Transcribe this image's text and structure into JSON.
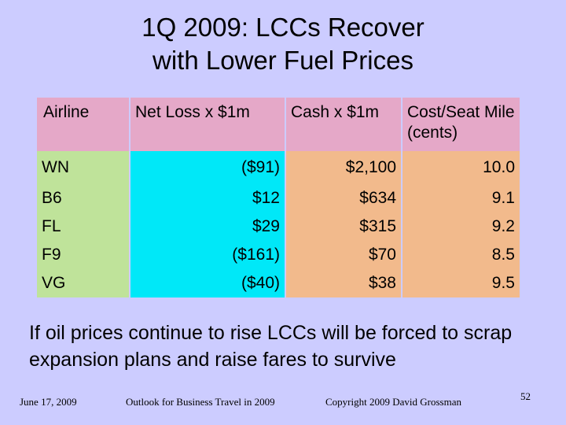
{
  "title": {
    "line1": "1Q 2009: LCCs Recover",
    "line2": "with Lower Fuel Prices"
  },
  "table": {
    "headers": [
      "Airline",
      "Net Loss x $1m",
      "Cash x $1m",
      "Cost/Seat Mile (cents)"
    ],
    "rows": [
      [
        "WN",
        "($91)",
        "$2,100",
        "10.0"
      ],
      [
        "B6",
        "$12",
        "$634",
        "9.1"
      ],
      [
        "FL",
        "$29",
        "$315",
        "9.2"
      ],
      [
        "F9",
        "($161)",
        "$70",
        "8.5"
      ],
      [
        "VG",
        "($40)",
        "$38",
        "9.5"
      ]
    ]
  },
  "note": "If oil prices continue to rise LCCs will be forced to scrap expansion plans and raise fares to survive",
  "footer": {
    "date": "June 17, 2009",
    "event": "Outlook for Business Travel in 2009",
    "copyright": "Copyright 2009 David Grossman",
    "page": "52"
  },
  "colors": {
    "background": "#ccccff",
    "header_row": "#e5a8c8",
    "airline_col": "#bfe39a",
    "loss_col": "#00e8f8",
    "cash_cost_cols": "#f2ba8c"
  }
}
